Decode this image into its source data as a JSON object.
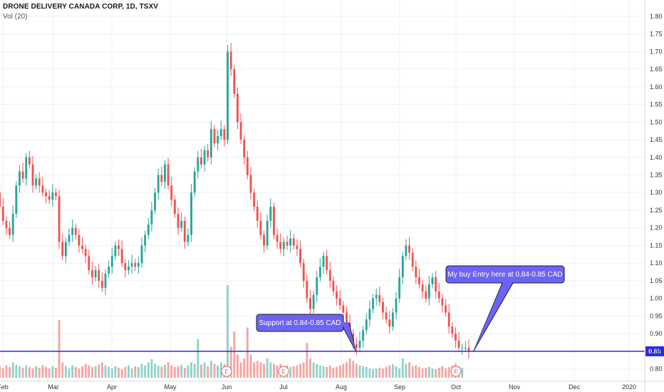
{
  "header": {
    "title": "DRONE DELIVERY CANADA CORP, 1D, TSXV",
    "volume_label": "Vol (20)"
  },
  "chart_data": {
    "type": "candlestick",
    "x_axis_labels": [
      "Feb",
      "Mar",
      "Apr",
      "May",
      "Jun",
      "Jul",
      "Aug",
      "Sep",
      "Oct",
      "Nov",
      "Dec",
      "2020"
    ],
    "y_ticks": [
      "0.80",
      "0.85",
      "0.90",
      "0.95",
      "1.00",
      "1.05",
      "1.10",
      "1.15",
      "1.20",
      "1.25",
      "1.30",
      "1.35",
      "1.40",
      "1.45",
      "1.50",
      "1.55",
      "1.60",
      "1.65",
      "1.70",
      "1.75",
      "1.80"
    ],
    "ylim": [
      0.775,
      1.83
    ],
    "support_level": 0.85,
    "support_label": "0.85",
    "earnings_marker_label": "E",
    "earnings_marker_months": [
      4,
      5,
      8
    ],
    "closes": [
      1.3,
      1.26,
      1.22,
      1.2,
      1.18,
      1.24,
      1.32,
      1.36,
      1.34,
      1.4,
      1.38,
      1.32,
      1.34,
      1.32,
      1.3,
      1.29,
      1.28,
      1.3,
      1.29,
      1.16,
      1.12,
      1.16,
      1.18,
      1.2,
      1.18,
      1.15,
      1.14,
      1.12,
      1.08,
      1.06,
      1.08,
      1.05,
      1.03,
      1.07,
      1.09,
      1.12,
      1.15,
      1.14,
      1.1,
      1.08,
      1.09,
      1.1,
      1.09,
      1.1,
      1.15,
      1.18,
      1.21,
      1.25,
      1.3,
      1.35,
      1.33,
      1.38,
      1.32,
      1.28,
      1.24,
      1.2,
      1.22,
      1.16,
      1.18,
      1.3,
      1.36,
      1.4,
      1.38,
      1.42,
      1.4,
      1.48,
      1.44,
      1.46,
      1.48,
      1.45,
      1.7,
      1.65,
      1.58,
      1.5,
      1.45,
      1.4,
      1.35,
      1.3,
      1.26,
      1.22,
      1.18,
      1.15,
      1.22,
      1.26,
      1.18,
      1.16,
      1.14,
      1.16,
      1.15,
      1.17,
      1.15,
      1.14,
      1.1,
      1.05,
      1.0,
      0.97,
      1.01,
      1.06,
      1.09,
      1.12,
      1.08,
      1.05,
      1.02,
      1.0,
      0.98,
      0.96,
      0.93,
      0.9,
      0.87,
      0.86,
      0.88,
      0.91,
      0.94,
      0.97,
      1.0,
      1.01,
      0.99,
      0.96,
      0.94,
      0.92,
      0.96,
      1.0,
      1.06,
      1.12,
      1.15,
      1.13,
      1.09,
      1.06,
      1.04,
      1.02,
      1.0,
      1.04,
      1.06,
      1.02,
      1.0,
      0.98,
      0.96,
      0.92,
      0.9,
      0.88,
      0.86,
      0.86,
      0.86,
      0.85
    ],
    "volumes": [
      0.018,
      0.015,
      0.012,
      0.016,
      0.014,
      0.02,
      0.017,
      0.015,
      0.013,
      0.016,
      0.014,
      0.012,
      0.015,
      0.013,
      0.016,
      0.014,
      0.012,
      0.015,
      0.013,
      0.075,
      0.02,
      0.015,
      0.012,
      0.016,
      0.014,
      0.012,
      0.015,
      0.018,
      0.016,
      0.014,
      0.015,
      0.017,
      0.02,
      0.016,
      0.014,
      0.012,
      0.015,
      0.013,
      0.011,
      0.014,
      0.016,
      0.012,
      0.015,
      0.014,
      0.018,
      0.016,
      0.02,
      0.024,
      0.018,
      0.016,
      0.014,
      0.017,
      0.02,
      0.016,
      0.014,
      0.015,
      0.017,
      0.013,
      0.016,
      0.02,
      0.018,
      0.05,
      0.017,
      0.02,
      0.015,
      0.022,
      0.018,
      0.016,
      0.02,
      0.018,
      0.12,
      0.04,
      0.06,
      0.03,
      0.02,
      0.025,
      0.065,
      0.03,
      0.02,
      0.022,
      0.02,
      0.018,
      0.025,
      0.02,
      0.018,
      0.016,
      0.018,
      0.015,
      0.016,
      0.014,
      0.015,
      0.016,
      0.018,
      0.02,
      0.045,
      0.025,
      0.02,
      0.018,
      0.016,
      0.015,
      0.014,
      0.016,
      0.013,
      0.014,
      0.016,
      0.018,
      0.02,
      0.025,
      0.022,
      0.018,
      0.016,
      0.015,
      0.014,
      0.012,
      0.011,
      0.012,
      0.013,
      0.012,
      0.014,
      0.016,
      0.018,
      0.015,
      0.012,
      0.025,
      0.018,
      0.02,
      0.015,
      0.016,
      0.014,
      0.012,
      0.013,
      0.014,
      0.012,
      0.011,
      0.013,
      0.015,
      0.012,
      0.014,
      0.016,
      0.018,
      0.015,
      0.013
    ],
    "vol_max": 0.12,
    "annotations": [
      {
        "text": "Support at 0.84-0.85 CAD",
        "target_month": 6.25,
        "target_price": 0.85
      },
      {
        "text": "My buy Entry here at 0.84-0.85 CAD",
        "target_month": 8.3,
        "target_price": 0.85
      }
    ],
    "colors": {
      "up": "#26a69a",
      "down": "#ef5350",
      "up_volume": "#8fd3c9",
      "down_volume": "#f4a5a3",
      "support_line": "#2a2ae8",
      "note_fill": "#6c63f5",
      "grid": "#eef0f3"
    }
  }
}
